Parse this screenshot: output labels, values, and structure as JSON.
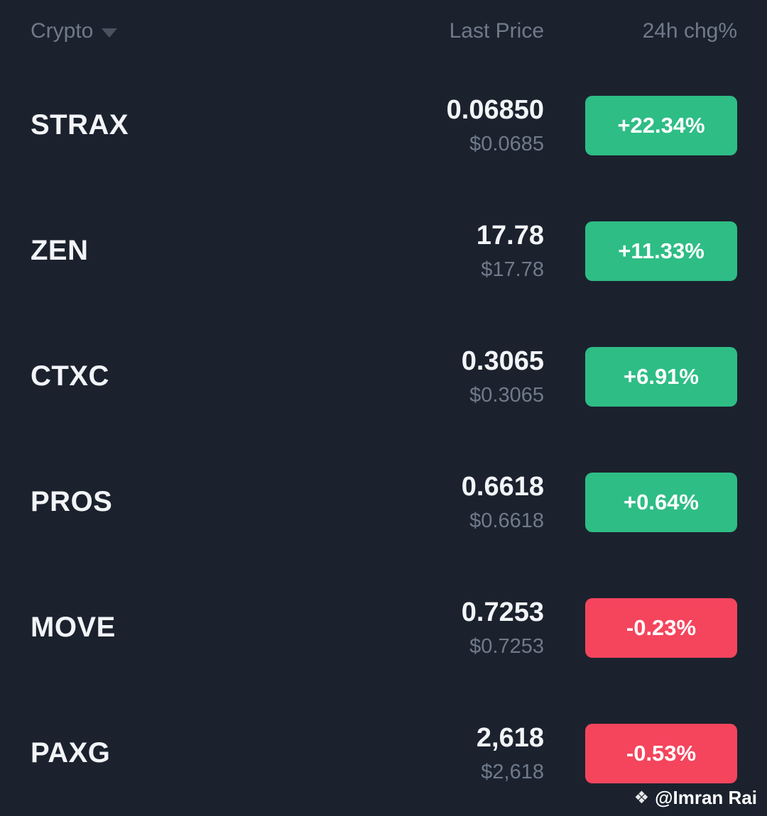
{
  "header": {
    "crypto_label": "Crypto",
    "last_price_label": "Last Price",
    "change_label": "24h chg%"
  },
  "rows": [
    {
      "symbol": "STRAX",
      "price": "0.06850",
      "usd": "$0.0685",
      "change": "+22.34%",
      "direction": "up"
    },
    {
      "symbol": "ZEN",
      "price": "17.78",
      "usd": "$17.78",
      "change": "+11.33%",
      "direction": "up"
    },
    {
      "symbol": "CTXC",
      "price": "0.3065",
      "usd": "$0.3065",
      "change": "+6.91%",
      "direction": "up"
    },
    {
      "symbol": "PROS",
      "price": "0.6618",
      "usd": "$0.6618",
      "change": "+0.64%",
      "direction": "up"
    },
    {
      "symbol": "MOVE",
      "price": "0.7253",
      "usd": "$0.7253",
      "change": "-0.23%",
      "direction": "down"
    },
    {
      "symbol": "PAXG",
      "price": "2,618",
      "usd": "$2,618",
      "change": "-0.53%",
      "direction": "down"
    }
  ],
  "watermark": {
    "icon": "❖",
    "text": "@Imran Rai"
  },
  "colors": {
    "up": "#2ebd85",
    "down": "#f4455d",
    "background": "#1b222e"
  }
}
